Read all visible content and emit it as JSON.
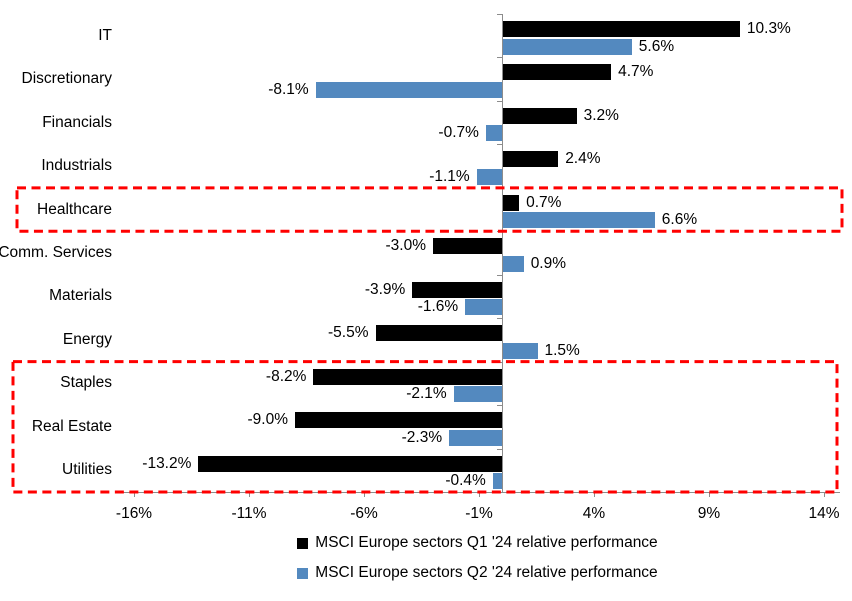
{
  "chart_data": {
    "type": "bar",
    "orientation": "horizontal",
    "title": "",
    "categories": [
      "IT",
      "Discretionary",
      "Financials",
      "Industrials",
      "Healthcare",
      "Comm. Services",
      "Materials",
      "Energy",
      "Staples",
      "Real Estate",
      "Utilities"
    ],
    "series": [
      {
        "name": "MSCI Europe sectors Q1 '24 relative performance",
        "color": "#000000",
        "values": [
          10.3,
          4.7,
          3.2,
          2.4,
          0.7,
          -3.0,
          -3.9,
          -5.5,
          -8.2,
          -9.0,
          -13.2
        ]
      },
      {
        "name": "MSCI Europe sectors Q2 '24 relative performance",
        "color": "#5389BF",
        "values": [
          5.6,
          -8.1,
          -0.7,
          -1.1,
          6.6,
          0.9,
          -1.6,
          1.5,
          -2.1,
          -2.3,
          -0.4
        ]
      }
    ],
    "value_label_format": "one-decimal-percent",
    "x_ticks": [
      {
        "label": "-16%",
        "value": -16
      },
      {
        "label": "-11%",
        "value": -11
      },
      {
        "label": "-6%",
        "value": -6
      },
      {
        "label": "-1%",
        "value": -1
      },
      {
        "label": "4%",
        "value": 4
      },
      {
        "label": "9%",
        "value": 9
      },
      {
        "label": "14%",
        "value": 14
      }
    ],
    "xlim": [
      -16.8,
      14.8
    ],
    "grid": false,
    "legend_position": "bottom-center",
    "axis_color": "#8c8c8c",
    "highlight_color": "#ff0000",
    "highlights": [
      {
        "name": "healthcare-highlight",
        "categories": [
          "Healthcare"
        ]
      },
      {
        "name": "defensives-highlight",
        "categories": [
          "Staples",
          "Real Estate",
          "Utilities"
        ]
      }
    ]
  },
  "legend": {
    "items": [
      {
        "label": "MSCI Europe sectors Q1 '24 relative performance",
        "color": "#000000"
      },
      {
        "label": "MSCI Europe sectors Q2 '24 relative performance",
        "color": "#5389BF"
      }
    ]
  }
}
